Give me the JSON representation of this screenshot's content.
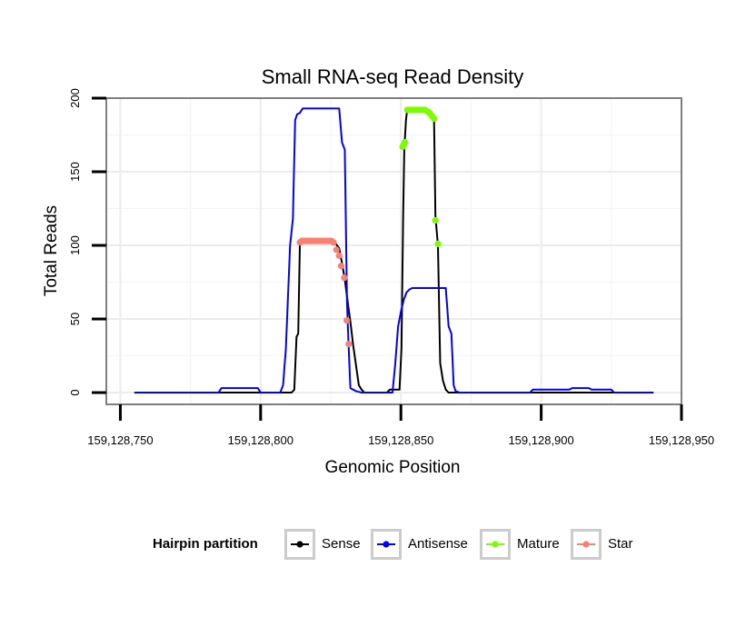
{
  "chart_data": {
    "type": "line",
    "title": "Small RNA-seq Read Density",
    "xlabel": "Genomic Position",
    "ylabel": "Total Reads",
    "xlim": [
      159128745,
      159128950
    ],
    "ylim": [
      -8,
      200
    ],
    "xticks": [
      159128750,
      159128800,
      159128850,
      159128900,
      159128950
    ],
    "xtick_labels": [
      "159,128,750",
      "159,128,800",
      "159,128,850",
      "159,128,900",
      "159,128,950"
    ],
    "yticks": [
      0,
      50,
      100,
      150,
      200
    ],
    "ytick_labels": [
      "0",
      "50",
      "100",
      "150",
      "200"
    ],
    "grid": true,
    "legend": {
      "title": "Hairpin partition",
      "position": "bottom",
      "entries": [
        {
          "name": "Sense",
          "color": "#000000"
        },
        {
          "name": "Antisense",
          "color": "#0000ff"
        },
        {
          "name": "Mature",
          "color": "#7cfc00"
        },
        {
          "name": "Star",
          "color": "#fa8072"
        }
      ]
    },
    "series": [
      {
        "name": "Sense",
        "color": "#000000",
        "points": [
          [
            159128755,
            0
          ],
          [
            159128811,
            0
          ],
          [
            159128812,
            2
          ],
          [
            159128812.8,
            38
          ],
          [
            159128813.4,
            40
          ],
          [
            159128814,
            102
          ],
          [
            159128816,
            103
          ],
          [
            159128826,
            103
          ],
          [
            159128828,
            98
          ],
          [
            159128829,
            88
          ],
          [
            159128830,
            77
          ],
          [
            159128831,
            62
          ],
          [
            159128832,
            48
          ],
          [
            159128833,
            32
          ],
          [
            159128835,
            5
          ],
          [
            159128836,
            2
          ],
          [
            159128837,
            0
          ],
          [
            159128845,
            0
          ],
          [
            159128846,
            2
          ],
          [
            159128849.5,
            2
          ],
          [
            159128850.2,
            30
          ],
          [
            159128850.8,
            120
          ],
          [
            159128851.2,
            165
          ],
          [
            159128851.8,
            185
          ],
          [
            159128852.3,
            193
          ],
          [
            159128859,
            193
          ],
          [
            159128860,
            192
          ],
          [
            159128861,
            190
          ],
          [
            159128861.8,
            187
          ],
          [
            159128862.3,
            120
          ],
          [
            159128863.2,
            100
          ],
          [
            159128864,
            20
          ],
          [
            159128865,
            8
          ],
          [
            159128866,
            2
          ],
          [
            159128867,
            0
          ],
          [
            159128940,
            0
          ]
        ]
      },
      {
        "name": "Antisense",
        "color": "#0000ff",
        "points": [
          [
            159128755,
            0
          ],
          [
            159128785,
            0
          ],
          [
            159128786,
            3
          ],
          [
            159128799,
            3
          ],
          [
            159128800,
            0
          ],
          [
            159128807,
            0
          ],
          [
            159128808,
            5
          ],
          [
            159128809,
            30
          ],
          [
            159128810.5,
            100
          ],
          [
            159128811.5,
            118
          ],
          [
            159128812.3,
            185
          ],
          [
            159128813,
            189
          ],
          [
            159128814,
            190
          ],
          [
            159128815,
            193
          ],
          [
            159128828,
            193
          ],
          [
            159128829,
            170
          ],
          [
            159128830,
            165
          ],
          [
            159128830.8,
            60
          ],
          [
            159128831.5,
            25
          ],
          [
            159128832,
            3
          ],
          [
            159128834,
            1
          ],
          [
            159128836,
            0
          ],
          [
            159128847,
            0
          ],
          [
            159128848,
            20
          ],
          [
            159128849,
            45
          ],
          [
            159128850,
            55
          ],
          [
            159128851,
            63
          ],
          [
            159128852,
            68
          ],
          [
            159128853,
            70
          ],
          [
            159128854,
            71
          ],
          [
            159128866,
            71
          ],
          [
            159128867,
            45
          ],
          [
            159128868,
            40
          ],
          [
            159128868.8,
            5
          ],
          [
            159128869.5,
            1
          ],
          [
            159128871,
            0
          ],
          [
            159128896,
            0
          ],
          [
            159128897,
            2
          ],
          [
            159128910,
            2
          ],
          [
            159128911,
            3
          ],
          [
            159128917,
            3
          ],
          [
            159128918,
            2
          ],
          [
            159128925,
            2
          ],
          [
            159128926,
            0
          ],
          [
            159128940,
            0
          ]
        ]
      }
    ],
    "marker_series": [
      {
        "name": "Mature",
        "color": "#7cfc00",
        "points": [
          [
            159128850.6,
            167
          ],
          [
            159128851,
            168
          ],
          [
            159128851.4,
            170
          ],
          [
            159128852.3,
            192
          ],
          [
            159128853,
            192
          ],
          [
            159128853.7,
            192
          ],
          [
            159128854.4,
            192
          ],
          [
            159128855.1,
            192
          ],
          [
            159128855.8,
            192
          ],
          [
            159128856.5,
            192
          ],
          [
            159128857.2,
            192
          ],
          [
            159128857.9,
            192
          ],
          [
            159128858.6,
            192
          ],
          [
            159128859.4,
            191
          ],
          [
            159128860.2,
            190
          ],
          [
            159128861,
            188
          ],
          [
            159128861.8,
            186
          ],
          [
            159128862.3,
            117
          ],
          [
            159128863.2,
            101
          ]
        ]
      },
      {
        "name": "Star",
        "color": "#fa8072",
        "points": [
          [
            159128814,
            102
          ],
          [
            159128814.7,
            103
          ],
          [
            159128815.4,
            103
          ],
          [
            159128816.1,
            103
          ],
          [
            159128816.8,
            103
          ],
          [
            159128817.5,
            103
          ],
          [
            159128818.2,
            103
          ],
          [
            159128818.9,
            103
          ],
          [
            159128819.6,
            103
          ],
          [
            159128820.3,
            103
          ],
          [
            159128821,
            103
          ],
          [
            159128821.7,
            103
          ],
          [
            159128822.4,
            103
          ],
          [
            159128823.1,
            103
          ],
          [
            159128823.8,
            103
          ],
          [
            159128824.5,
            103
          ],
          [
            159128825.2,
            103
          ],
          [
            159128826,
            102
          ],
          [
            159128827,
            97
          ],
          [
            159128828,
            93
          ],
          [
            159128828.7,
            86
          ],
          [
            159128829.8,
            78
          ],
          [
            159128830.7,
            49
          ],
          [
            159128831.4,
            33
          ]
        ]
      }
    ]
  }
}
